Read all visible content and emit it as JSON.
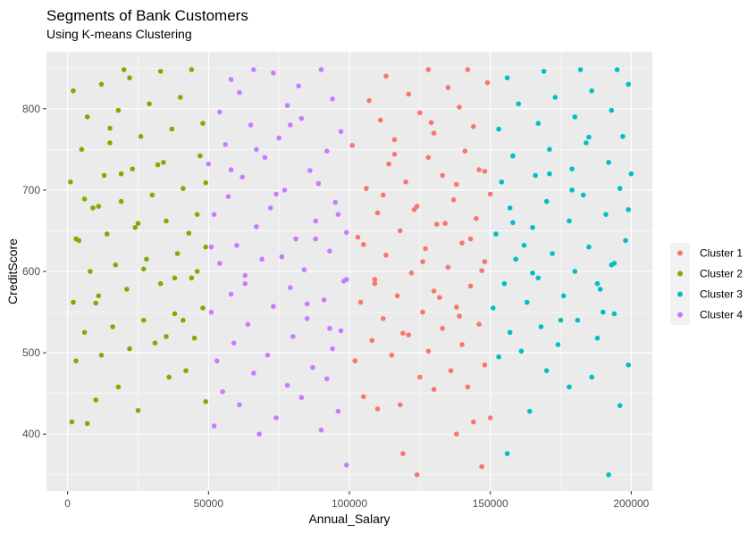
{
  "chart_data": {
    "type": "scatter",
    "title": "Segments of Bank Customers",
    "subtitle": "Using K-means Clustering",
    "xlabel": "Annual_Salary",
    "ylabel": "CreditScore",
    "xlim": [
      -7500,
      207500
    ],
    "ylim": [
      330,
      870
    ],
    "x_ticks": [
      0,
      50000,
      100000,
      150000,
      200000
    ],
    "x_tick_labels": [
      "0",
      "50000",
      "100000",
      "150000",
      "200000"
    ],
    "y_ticks": [
      400,
      500,
      600,
      700,
      800
    ],
    "y_tick_labels": [
      "400",
      "500",
      "600",
      "700",
      "800"
    ],
    "grid": true,
    "legend_position": "right",
    "series": [
      {
        "name": "Cluster 1",
        "color": "#F8766D",
        "x_range": [
          100000,
          150000
        ],
        "points": [
          [
            124000,
            350
          ],
          [
            147000,
            360
          ],
          [
            119000,
            376
          ],
          [
            138000,
            400
          ],
          [
            144000,
            415
          ],
          [
            150000,
            420
          ],
          [
            110000,
            431
          ],
          [
            118000,
            436
          ],
          [
            105000,
            446
          ],
          [
            130000,
            455
          ],
          [
            142000,
            458
          ],
          [
            125000,
            470
          ],
          [
            136000,
            478
          ],
          [
            148000,
            485
          ],
          [
            102000,
            490
          ],
          [
            115000,
            497
          ],
          [
            128000,
            502
          ],
          [
            140000,
            510
          ],
          [
            108000,
            515
          ],
          [
            121000,
            522
          ],
          [
            133000,
            530
          ],
          [
            146000,
            535
          ],
          [
            112000,
            542
          ],
          [
            126000,
            550
          ],
          [
            138000,
            556
          ],
          [
            104000,
            562
          ],
          [
            117000,
            570
          ],
          [
            130000,
            576
          ],
          [
            143000,
            582
          ],
          [
            109000,
            590
          ],
          [
            122000,
            598
          ],
          [
            135000,
            605
          ],
          [
            148000,
            612
          ],
          [
            113000,
            620
          ],
          [
            127000,
            628
          ],
          [
            140000,
            635
          ],
          [
            103000,
            642
          ],
          [
            118000,
            650
          ],
          [
            131000,
            658
          ],
          [
            145000,
            665
          ],
          [
            110000,
            672
          ],
          [
            124000,
            680
          ],
          [
            137000,
            688
          ],
          [
            150000,
            695
          ],
          [
            106000,
            702
          ],
          [
            120000,
            710
          ],
          [
            133000,
            718
          ],
          [
            146000,
            725
          ],
          [
            114000,
            732
          ],
          [
            128000,
            740
          ],
          [
            141000,
            748
          ],
          [
            101000,
            755
          ],
          [
            116000,
            762
          ],
          [
            130000,
            770
          ],
          [
            144000,
            778
          ],
          [
            111000,
            786
          ],
          [
            125000,
            795
          ],
          [
            139000,
            802
          ],
          [
            107000,
            810
          ],
          [
            121000,
            818
          ],
          [
            135000,
            826
          ],
          [
            149000,
            832
          ],
          [
            113000,
            840
          ],
          [
            128000,
            848
          ],
          [
            142000,
            848
          ],
          [
            119000,
            524
          ],
          [
            132000,
            568
          ],
          [
            147000,
            601
          ],
          [
            105000,
            633
          ],
          [
            123000,
            676
          ],
          [
            138000,
            707
          ],
          [
            116000,
            744
          ],
          [
            129000,
            783
          ],
          [
            143000,
            640
          ],
          [
            109000,
            585
          ],
          [
            126000,
            612
          ],
          [
            139000,
            545
          ],
          [
            112000,
            694
          ],
          [
            134000,
            659
          ],
          [
            148000,
            723
          ]
        ]
      },
      {
        "name": "Cluster 2",
        "color": "#7CAE00",
        "x_range": [
          0,
          50000
        ],
        "points": [
          [
            1500,
            415
          ],
          [
            7000,
            413
          ],
          [
            25000,
            429
          ],
          [
            10000,
            442
          ],
          [
            49000,
            440
          ],
          [
            18000,
            458
          ],
          [
            36000,
            470
          ],
          [
            42000,
            478
          ],
          [
            3000,
            490
          ],
          [
            12000,
            497
          ],
          [
            22000,
            505
          ],
          [
            31000,
            512
          ],
          [
            45000,
            518
          ],
          [
            6000,
            525
          ],
          [
            16000,
            532
          ],
          [
            27000,
            540
          ],
          [
            38000,
            548
          ],
          [
            48000,
            555
          ],
          [
            2000,
            562
          ],
          [
            11000,
            570
          ],
          [
            21000,
            578
          ],
          [
            33000,
            585
          ],
          [
            44000,
            592
          ],
          [
            8000,
            600
          ],
          [
            17000,
            608
          ],
          [
            28000,
            615
          ],
          [
            39000,
            622
          ],
          [
            49000,
            630
          ],
          [
            4000,
            638
          ],
          [
            14000,
            646
          ],
          [
            24000,
            654
          ],
          [
            35000,
            662
          ],
          [
            46000,
            670
          ],
          [
            9000,
            678
          ],
          [
            19000,
            686
          ],
          [
            30000,
            694
          ],
          [
            41000,
            702
          ],
          [
            1000,
            710
          ],
          [
            13000,
            718
          ],
          [
            23000,
            726
          ],
          [
            34000,
            734
          ],
          [
            47000,
            742
          ],
          [
            5000,
            750
          ],
          [
            15000,
            758
          ],
          [
            26000,
            766
          ],
          [
            37000,
            775
          ],
          [
            48000,
            782
          ],
          [
            7000,
            790
          ],
          [
            18000,
            798
          ],
          [
            29000,
            806
          ],
          [
            40000,
            814
          ],
          [
            2000,
            822
          ],
          [
            12000,
            830
          ],
          [
            22000,
            838
          ],
          [
            33000,
            846
          ],
          [
            44000,
            848
          ],
          [
            20000,
            848
          ],
          [
            10000,
            561
          ],
          [
            27000,
            603
          ],
          [
            43000,
            647
          ],
          [
            6000,
            689
          ],
          [
            32000,
            731
          ],
          [
            15000,
            776
          ],
          [
            38000,
            592
          ],
          [
            25000,
            659
          ],
          [
            49000,
            709
          ],
          [
            3000,
            640
          ],
          [
            41000,
            540
          ],
          [
            19000,
            720
          ],
          [
            35000,
            520
          ],
          [
            11000,
            680
          ],
          [
            46000,
            600
          ]
        ]
      },
      {
        "name": "Cluster 3",
        "color": "#00BFC4",
        "x_range": [
          150000,
          200000
        ],
        "points": [
          [
            192000,
            350
          ],
          [
            156000,
            376
          ],
          [
            164000,
            428
          ],
          [
            196000,
            435
          ],
          [
            178000,
            458
          ],
          [
            186000,
            470
          ],
          [
            170000,
            478
          ],
          [
            199000,
            485
          ],
          [
            153000,
            495
          ],
          [
            161000,
            502
          ],
          [
            174000,
            510
          ],
          [
            188000,
            518
          ],
          [
            157000,
            525
          ],
          [
            168000,
            532
          ],
          [
            181000,
            540
          ],
          [
            194000,
            548
          ],
          [
            151000,
            555
          ],
          [
            163000,
            562
          ],
          [
            176000,
            570
          ],
          [
            189000,
            578
          ],
          [
            155000,
            585
          ],
          [
            167000,
            592
          ],
          [
            180000,
            600
          ],
          [
            193000,
            608
          ],
          [
            159000,
            615
          ],
          [
            172000,
            622
          ],
          [
            185000,
            630
          ],
          [
            198000,
            638
          ],
          [
            152000,
            646
          ],
          [
            165000,
            654
          ],
          [
            178000,
            662
          ],
          [
            191000,
            670
          ],
          [
            157000,
            678
          ],
          [
            170000,
            686
          ],
          [
            183000,
            694
          ],
          [
            196000,
            702
          ],
          [
            154000,
            710
          ],
          [
            166000,
            718
          ],
          [
            179000,
            726
          ],
          [
            192000,
            734
          ],
          [
            158000,
            742
          ],
          [
            171000,
            750
          ],
          [
            184000,
            758
          ],
          [
            197000,
            766
          ],
          [
            153000,
            775
          ],
          [
            167000,
            782
          ],
          [
            180000,
            790
          ],
          [
            193000,
            798
          ],
          [
            160000,
            806
          ],
          [
            173000,
            814
          ],
          [
            186000,
            822
          ],
          [
            199000,
            830
          ],
          [
            156000,
            838
          ],
          [
            169000,
            846
          ],
          [
            182000,
            848
          ],
          [
            195000,
            848
          ],
          [
            175000,
            540
          ],
          [
            188000,
            585
          ],
          [
            162000,
            632
          ],
          [
            199000,
            676
          ],
          [
            171000,
            720
          ],
          [
            185000,
            765
          ],
          [
            158000,
            660
          ],
          [
            194000,
            610
          ],
          [
            179000,
            700
          ],
          [
            165000,
            598
          ],
          [
            190000,
            550
          ],
          [
            200000,
            720
          ]
        ]
      },
      {
        "name": "Cluster 4",
        "color": "#C77CFF",
        "x_range": [
          50000,
          100000
        ],
        "points": [
          [
            99000,
            362
          ],
          [
            68000,
            400
          ],
          [
            90000,
            405
          ],
          [
            52000,
            410
          ],
          [
            74000,
            420
          ],
          [
            96000,
            428
          ],
          [
            61000,
            436
          ],
          [
            83000,
            445
          ],
          [
            55000,
            452
          ],
          [
            78000,
            460
          ],
          [
            92000,
            468
          ],
          [
            66000,
            475
          ],
          [
            87000,
            482
          ],
          [
            53000,
            490
          ],
          [
            71000,
            497
          ],
          [
            94000,
            505
          ],
          [
            59000,
            512
          ],
          [
            80000,
            520
          ],
          [
            97000,
            527
          ],
          [
            64000,
            535
          ],
          [
            85000,
            542
          ],
          [
            51000,
            550
          ],
          [
            73000,
            557
          ],
          [
            91000,
            565
          ],
          [
            58000,
            572
          ],
          [
            79000,
            580
          ],
          [
            98000,
            588
          ],
          [
            63000,
            595
          ],
          [
            84000,
            602
          ],
          [
            54000,
            610
          ],
          [
            76000,
            618
          ],
          [
            93000,
            625
          ],
          [
            60000,
            632
          ],
          [
            81000,
            640
          ],
          [
            99000,
            648
          ],
          [
            67000,
            655
          ],
          [
            88000,
            662
          ],
          [
            52000,
            670
          ],
          [
            72000,
            678
          ],
          [
            95000,
            685
          ],
          [
            57000,
            692
          ],
          [
            77000,
            700
          ],
          [
            89000,
            708
          ],
          [
            62000,
            716
          ],
          [
            86000,
            724
          ],
          [
            50000,
            732
          ],
          [
            70000,
            740
          ],
          [
            92000,
            748
          ],
          [
            56000,
            756
          ],
          [
            75000,
            764
          ],
          [
            97000,
            772
          ],
          [
            65000,
            780
          ],
          [
            83000,
            788
          ],
          [
            54000,
            796
          ],
          [
            78000,
            804
          ],
          [
            94000,
            812
          ],
          [
            61000,
            820
          ],
          [
            82000,
            828
          ],
          [
            58000,
            836
          ],
          [
            73000,
            844
          ],
          [
            66000,
            848
          ],
          [
            90000,
            848
          ],
          [
            85000,
            560
          ],
          [
            69000,
            615
          ],
          [
            96000,
            670
          ],
          [
            58000,
            725
          ],
          [
            79000,
            780
          ],
          [
            63000,
            585
          ],
          [
            88000,
            640
          ],
          [
            74000,
            695
          ],
          [
            99000,
            590
          ],
          [
            51000,
            630
          ],
          [
            93000,
            530
          ],
          [
            67000,
            750
          ]
        ]
      }
    ]
  }
}
